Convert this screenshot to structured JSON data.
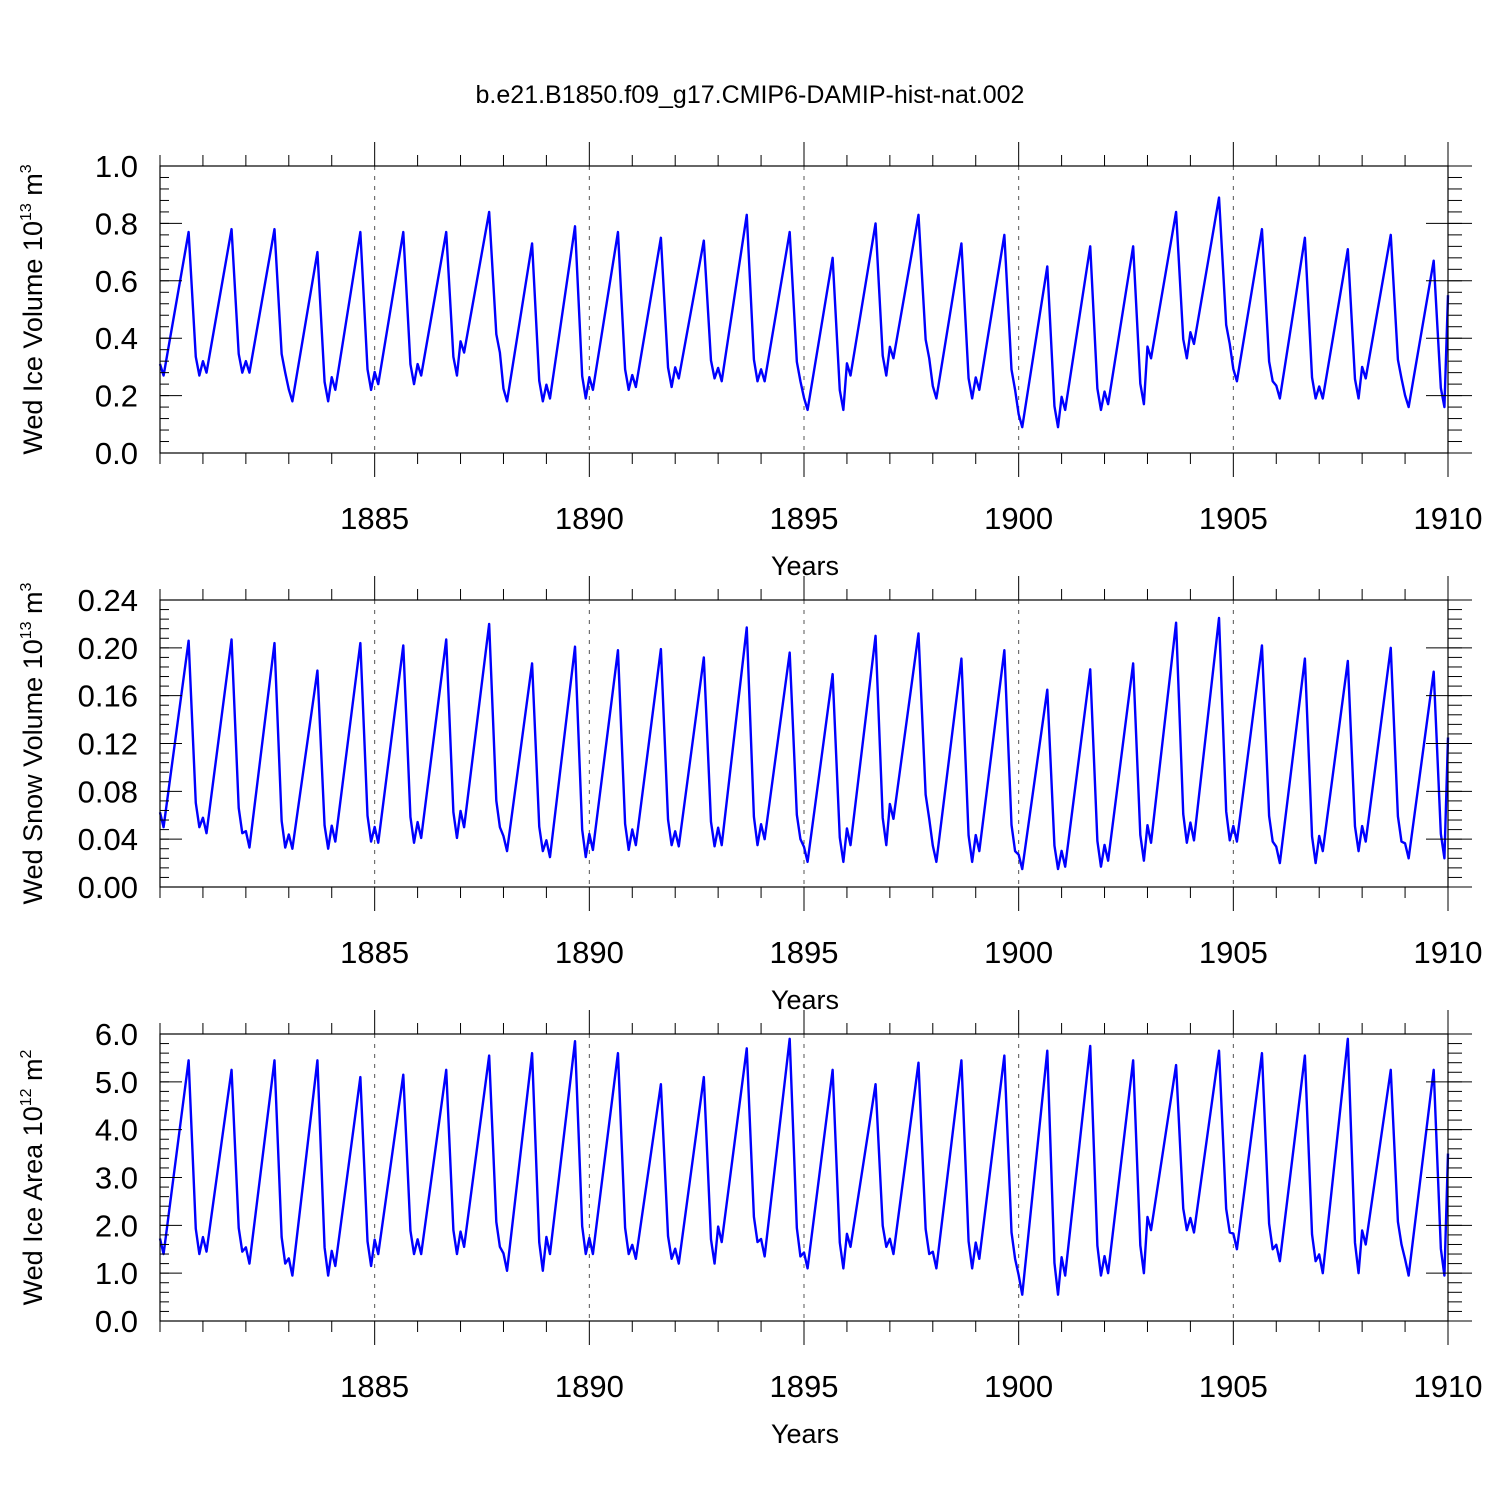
{
  "title": "b.e21.B1850.f09_g17.CMIP6-DAMIP-hist-nat.002",
  "chart_data": [
    {
      "type": "line",
      "id": "ice-volume",
      "ylabel": "Wed Ice Volume 10",
      "ylabel_exp": "13",
      "ylabel_unit": " m",
      "ylabel_unit_exp": "3",
      "xlabel": "Years",
      "xlim": [
        1880,
        1910
      ],
      "ylim": [
        0,
        1.0
      ],
      "x_ticks": [
        1885,
        1890,
        1895,
        1900,
        1905,
        1910
      ],
      "x_tick_labels": [
        "1885",
        "1890",
        "1895",
        "1900",
        "1905",
        "1910"
      ],
      "y_ticks": [
        0,
        0.2,
        0.4,
        0.6,
        0.8,
        1.0
      ],
      "y_tick_labels": [
        "0.0",
        "0.2",
        "0.4",
        "0.6",
        "0.8",
        "1.0"
      ],
      "y_minor_step": 0.04,
      "grid_x": true,
      "color": "#0000ff",
      "monthly_from": 1880.0,
      "annual_min": [
        0.27,
        0.28,
        0.28,
        0.18,
        0.22,
        0.24,
        0.27,
        0.35,
        0.18,
        0.19,
        0.22,
        0.23,
        0.26,
        0.25,
        0.25,
        0.15,
        0.27,
        0.33,
        0.19,
        0.22,
        0.09,
        0.15,
        0.17,
        0.33,
        0.38,
        0.25,
        0.19,
        0.19,
        0.26,
        0.16
      ],
      "annual_max": [
        0.77,
        0.78,
        0.78,
        0.7,
        0.77,
        0.77,
        0.77,
        0.84,
        0.73,
        0.79,
        0.77,
        0.75,
        0.74,
        0.83,
        0.77,
        0.68,
        0.8,
        0.83,
        0.73,
        0.76,
        0.65,
        0.72,
        0.72,
        0.84,
        0.89,
        0.78,
        0.75,
        0.71,
        0.76,
        0.67
      ],
      "final_value": 0.55
    },
    {
      "type": "line",
      "id": "snow-volume",
      "ylabel": "Wed Snow Volume 10",
      "ylabel_exp": "13",
      "ylabel_unit": " m",
      "ylabel_unit_exp": "3",
      "xlabel": "Years",
      "xlim": [
        1880,
        1910
      ],
      "ylim": [
        0,
        0.24
      ],
      "x_ticks": [
        1885,
        1890,
        1895,
        1900,
        1905,
        1910
      ],
      "x_tick_labels": [
        "1885",
        "1890",
        "1895",
        "1900",
        "1905",
        "1910"
      ],
      "y_ticks": [
        0,
        0.04,
        0.08,
        0.12,
        0.16,
        0.2,
        0.24
      ],
      "y_tick_labels": [
        "0.00",
        "0.04",
        "0.08",
        "0.12",
        "0.16",
        "0.20",
        "0.24"
      ],
      "y_minor_step": 0.008,
      "grid_x": true,
      "color": "#0000ff",
      "monthly_from": 1880.0,
      "annual_min": [
        0.05,
        0.045,
        0.033,
        0.032,
        0.038,
        0.037,
        0.041,
        0.05,
        0.03,
        0.025,
        0.031,
        0.035,
        0.034,
        0.035,
        0.04,
        0.021,
        0.035,
        0.057,
        0.021,
        0.03,
        0.015,
        0.017,
        0.022,
        0.037,
        0.039,
        0.038,
        0.02,
        0.03,
        0.038,
        0.024
      ],
      "annual_max": [
        0.206,
        0.207,
        0.204,
        0.181,
        0.204,
        0.202,
        0.207,
        0.22,
        0.187,
        0.201,
        0.198,
        0.199,
        0.192,
        0.217,
        0.196,
        0.178,
        0.21,
        0.212,
        0.191,
        0.198,
        0.165,
        0.182,
        0.187,
        0.221,
        0.225,
        0.202,
        0.191,
        0.189,
        0.2,
        0.18
      ],
      "final_value": 0.125
    },
    {
      "type": "line",
      "id": "ice-area",
      "ylabel": "Wed Ice Area 10",
      "ylabel_exp": "12",
      "ylabel_unit": " m",
      "ylabel_unit_exp": "2",
      "xlabel": "Years",
      "xlim": [
        1880,
        1910
      ],
      "ylim": [
        0,
        6.0
      ],
      "x_ticks": [
        1885,
        1890,
        1895,
        1900,
        1905,
        1910
      ],
      "x_tick_labels": [
        "1885",
        "1890",
        "1895",
        "1900",
        "1905",
        "1910"
      ],
      "y_ticks": [
        0,
        1,
        2,
        3,
        4,
        5,
        6
      ],
      "y_tick_labels": [
        "0.0",
        "1.0",
        "2.0",
        "3.0",
        "4.0",
        "5.0",
        "6.0"
      ],
      "y_minor_step": 0.2,
      "grid_x": true,
      "color": "#0000ff",
      "monthly_from": 1880.0,
      "annual_min": [
        1.4,
        1.45,
        1.2,
        0.95,
        1.15,
        1.4,
        1.4,
        1.55,
        1.05,
        1.4,
        1.4,
        1.3,
        1.2,
        1.65,
        1.35,
        1.1,
        1.55,
        1.4,
        1.1,
        1.3,
        0.55,
        0.95,
        1.0,
        1.9,
        1.85,
        1.5,
        1.25,
        1.0,
        1.6,
        0.95
      ],
      "annual_max": [
        5.45,
        5.25,
        5.45,
        5.45,
        5.1,
        5.15,
        5.25,
        5.55,
        5.6,
        5.85,
        5.6,
        4.95,
        5.1,
        5.7,
        5.9,
        5.25,
        4.95,
        5.4,
        5.45,
        5.55,
        5.65,
        5.75,
        5.45,
        5.35,
        5.65,
        5.6,
        5.55,
        5.9,
        5.25,
        5.25
      ],
      "final_value": 3.5
    }
  ]
}
